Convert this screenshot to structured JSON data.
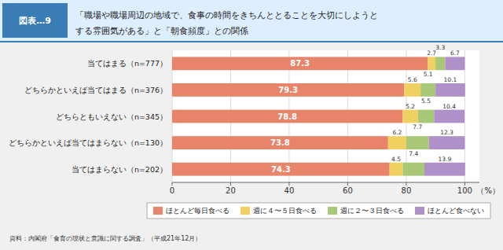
{
  "chart_data": {
    "type": "bar",
    "orientation": "horizontal",
    "stacked": true,
    "title": [
      "「職場や職場周辺の地域で、食事の時間をきちんととることを大切にしようと",
      "する雰囲気がある」と「朝食頻度」との関係"
    ],
    "annotations": [
      "図表…9",
      "資料：内閣府「食育の現状と意識に関する調査」（平成21年12月）"
    ],
    "xlabel": "（%）",
    "categories": [
      "当てはまる（n=777）",
      "どちらかといえば当てはまる（n=376）",
      "どちらともいえない（n=345）",
      "どちらかといえば当てはまらない（n=130）",
      "当てはまらない（n=202）"
    ],
    "series": [
      {
        "name": "ほとんど毎日食べる",
        "color": "#E8846A",
        "values": [
          87.3,
          79.3,
          78.8,
          73.8,
          74.3
        ]
      },
      {
        "name": "週に４〜５日食べる",
        "color": "#F0D060",
        "values": [
          2.7,
          5.6,
          5.2,
          6.2,
          4.5
        ]
      },
      {
        "name": "週に２〜３日食べる",
        "color": "#A8C878",
        "values": [
          3.3,
          5.1,
          5.5,
          7.7,
          7.4
        ]
      },
      {
        "name": "ほとんど食べない",
        "color": "#B090C8",
        "values": [
          6.7,
          10.1,
          10.4,
          12.3,
          13.9
        ]
      }
    ],
    "xlim": [
      0,
      105
    ],
    "xticks": [
      0,
      20,
      40,
      60,
      80,
      100
    ],
    "grid": true,
    "legend": "bottom",
    "data_labels": true
  }
}
